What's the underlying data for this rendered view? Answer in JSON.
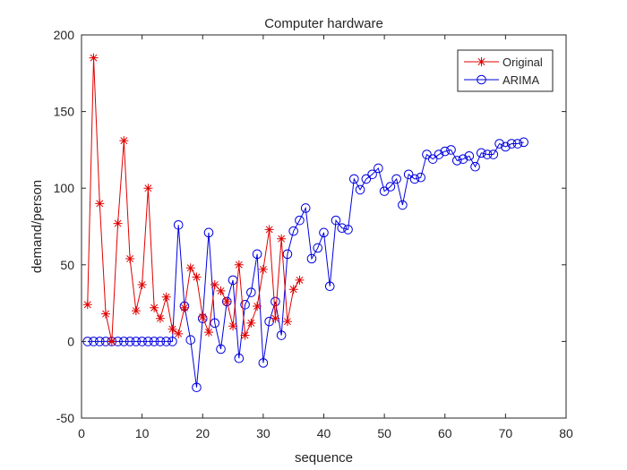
{
  "chart_data": {
    "type": "line",
    "title": "Computer hardware",
    "xlabel": "sequence",
    "ylabel": "demand/person",
    "xlim": [
      0,
      80
    ],
    "ylim": [
      -50,
      200
    ],
    "xticks": [
      0,
      10,
      20,
      30,
      40,
      50,
      60,
      70,
      80
    ],
    "yticks": [
      -50,
      0,
      50,
      100,
      150,
      200
    ],
    "grid": false,
    "legend_position": "top-right",
    "series": [
      {
        "name": "Original",
        "color": "#e00000",
        "marker": "star",
        "x": [
          1,
          2,
          3,
          4,
          5,
          6,
          7,
          8,
          9,
          10,
          11,
          12,
          13,
          14,
          15,
          16,
          17,
          18,
          19,
          20,
          21,
          22,
          23,
          24,
          25,
          26,
          27,
          28,
          29,
          30,
          31,
          32,
          33,
          34,
          35,
          36
        ],
        "y": [
          24,
          185,
          90,
          18,
          0,
          77,
          131,
          54,
          20,
          37,
          100,
          22,
          15,
          29,
          8,
          5,
          22,
          48,
          42,
          16,
          6,
          37,
          33,
          26,
          10,
          50,
          4,
          12,
          23,
          47,
          73,
          15,
          67,
          13,
          34,
          40
        ]
      },
      {
        "name": "ARIMA",
        "color": "#0000e0",
        "marker": "circle",
        "x": [
          1,
          2,
          3,
          4,
          5,
          6,
          7,
          8,
          9,
          10,
          11,
          12,
          13,
          14,
          15,
          16,
          17,
          18,
          19,
          20,
          21,
          22,
          23,
          24,
          25,
          26,
          27,
          28,
          29,
          30,
          31,
          32,
          33,
          34,
          35,
          36,
          37,
          38,
          39,
          40,
          41,
          42,
          43,
          44,
          45,
          46,
          47,
          48,
          49,
          50,
          51,
          52,
          53,
          54,
          55,
          56,
          57,
          58,
          59,
          60,
          61,
          62,
          63,
          64,
          65,
          66,
          67,
          68,
          69,
          70,
          71,
          72,
          73
        ],
        "y": [
          0,
          0,
          0,
          0,
          0,
          0,
          0,
          0,
          0,
          0,
          0,
          0,
          0,
          0,
          0,
          76,
          23,
          1,
          -30,
          15,
          71,
          12,
          -5,
          26,
          40,
          -11,
          24,
          32,
          57,
          -14,
          13,
          26,
          4,
          57,
          72,
          79,
          87,
          54,
          61,
          71,
          36,
          79,
          74,
          73,
          106,
          99,
          106,
          109,
          113,
          98,
          101,
          106,
          89,
          109,
          106,
          107,
          122,
          119,
          122,
          124,
          125,
          118,
          119,
          121,
          114,
          123,
          122,
          122,
          129,
          127,
          129,
          129,
          130
        ]
      }
    ]
  }
}
